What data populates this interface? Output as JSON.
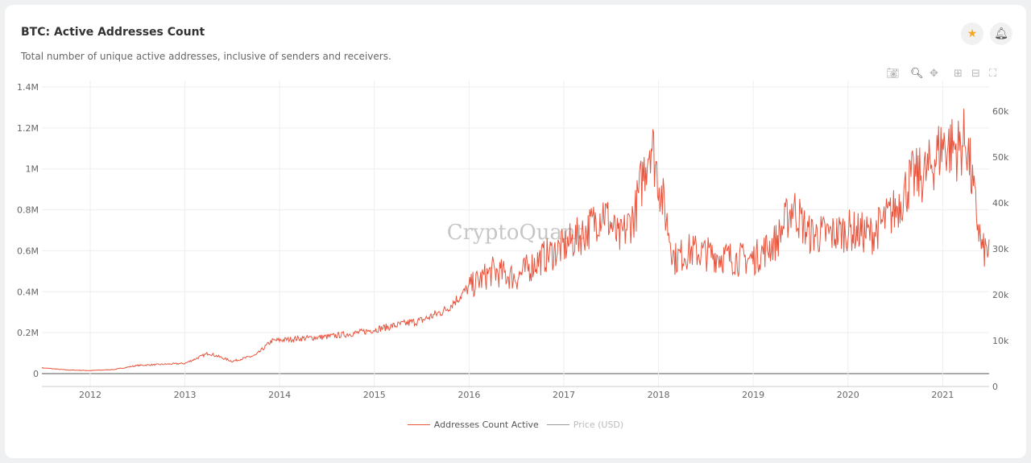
{
  "header": {
    "title": "BTC: Active Addresses Count",
    "subtitle": "Total number of unique active addresses, inclusive of senders and receivers."
  },
  "icons": {
    "favorite": "star-icon",
    "alert": "bell-icon",
    "accent": "#f5a623"
  },
  "toolbar": [
    "camera-icon",
    "zoom-icon",
    "pan-icon",
    "zoom-in-icon",
    "zoom-out-icon",
    "autoscale-icon"
  ],
  "watermark": "CryptoQuant",
  "chart_data": {
    "type": "line",
    "title": "BTC: Active Addresses Count",
    "x_ticks": [
      "2012",
      "2013",
      "2014",
      "2015",
      "2016",
      "2017",
      "2018",
      "2019",
      "2020",
      "2021"
    ],
    "y_left_ticks": [
      "0",
      "0.2M",
      "0.4M",
      "0.6M",
      "0.8M",
      "1M",
      "1.2M",
      "1.4M"
    ],
    "y_right_ticks": [
      "0",
      "10k",
      "20k",
      "30k",
      "40k",
      "50k",
      "60k"
    ],
    "ylim_left": [
      0,
      1400000
    ],
    "ylim_right": [
      0,
      65000
    ],
    "xlim": [
      "2011-07",
      "2021-06"
    ],
    "grid": true,
    "legend_position": "bottom",
    "series": [
      {
        "name": "Addresses Count Active",
        "color": "#e8553e",
        "visible": true,
        "x": [
          "2011-07",
          "2011-10",
          "2012-01",
          "2012-04",
          "2012-07",
          "2012-10",
          "2013-01",
          "2013-04",
          "2013-07",
          "2013-10",
          "2013-12",
          "2014-03",
          "2014-07",
          "2014-11",
          "2015-03",
          "2015-07",
          "2015-10",
          "2016-01",
          "2016-04",
          "2016-07",
          "2016-10",
          "2017-01",
          "2017-04",
          "2017-06",
          "2017-08",
          "2017-10",
          "2017-12",
          "2018-01",
          "2018-03",
          "2018-05",
          "2018-08",
          "2018-11",
          "2019-01",
          "2019-04",
          "2019-06",
          "2019-08",
          "2019-11",
          "2020-01",
          "2020-04",
          "2020-07",
          "2020-09",
          "2020-11",
          "2021-01",
          "2021-03",
          "2021-04",
          "2021-05",
          "2021-06"
        ],
        "values": [
          28000,
          18000,
          15000,
          20000,
          40000,
          45000,
          50000,
          100000,
          60000,
          90000,
          160000,
          170000,
          180000,
          200000,
          230000,
          260000,
          310000,
          420000,
          500000,
          470000,
          560000,
          620000,
          700000,
          800000,
          650000,
          780000,
          1150000,
          950000,
          560000,
          600000,
          580000,
          560000,
          560000,
          650000,
          820000,
          680000,
          680000,
          700000,
          680000,
          800000,
          950000,
          980000,
          1120000,
          1100000,
          1150000,
          850000,
          600000
        ]
      },
      {
        "name": "Price (USD)",
        "color": "#999999",
        "visible": false
      }
    ]
  }
}
